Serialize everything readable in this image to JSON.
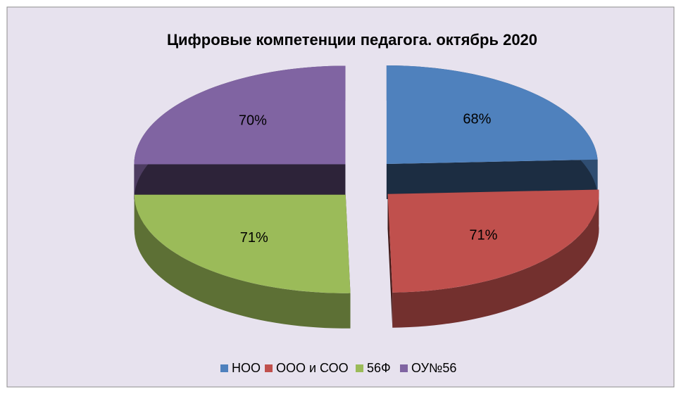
{
  "chart_data": {
    "type": "pie",
    "title": "Цифровые компетенции педагога. октябрь 2020",
    "categories": [
      "НОО",
      "ООО и СОО",
      "56Ф",
      "ОУ№56"
    ],
    "values": [
      68,
      71,
      71,
      70
    ],
    "value_labels": [
      "68%",
      "71%",
      "71%",
      "70%"
    ],
    "colors": [
      "#4f81bd",
      "#c0504d",
      "#9bbb59",
      "#8064a2"
    ],
    "legend": "bottom"
  }
}
